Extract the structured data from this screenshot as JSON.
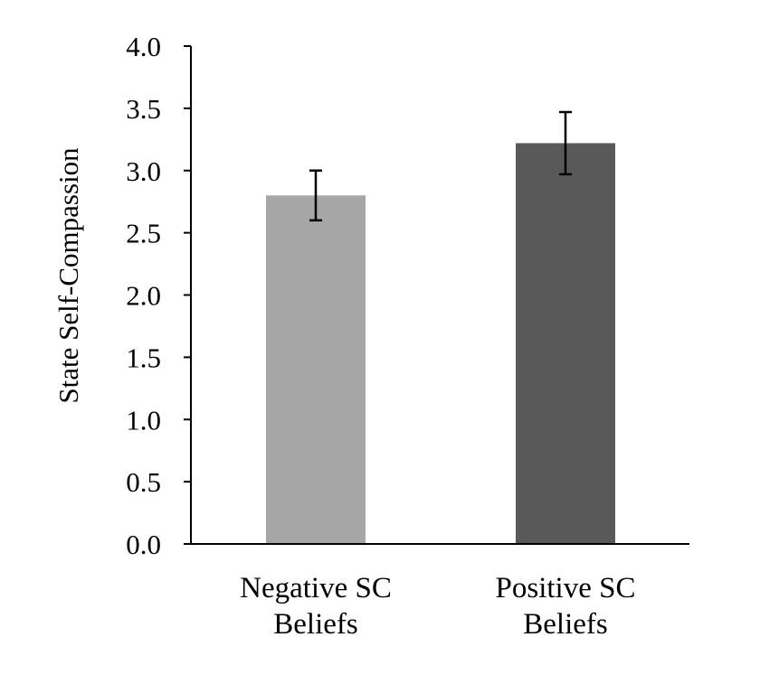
{
  "chart_data": {
    "type": "bar",
    "title": "",
    "xlabel": "",
    "ylabel": "State Self-Compassion",
    "categories": [
      [
        "Negative SC",
        "Beliefs"
      ],
      [
        "Positive SC",
        "Beliefs"
      ]
    ],
    "values": [
      2.8,
      3.22
    ],
    "error_bars": [
      {
        "low": 2.6,
        "high": 3.0
      },
      {
        "low": 2.97,
        "high": 3.47
      }
    ],
    "bar_colors": [
      "#a6a6a6",
      "#595959"
    ],
    "ylim": [
      0,
      4
    ],
    "yticks": [
      "0.0",
      "0.5",
      "1.0",
      "1.5",
      "2.0",
      "2.5",
      "3.0",
      "3.5",
      "4.0"
    ],
    "grid": false,
    "legend": "none"
  }
}
